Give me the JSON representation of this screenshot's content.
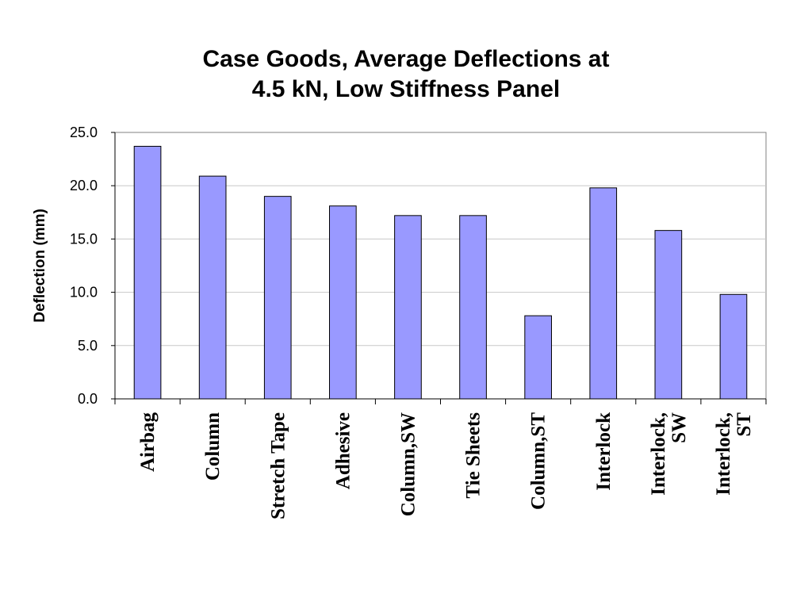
{
  "chart_data": {
    "type": "bar",
    "title_line1": "Case Goods, Average Deflections at",
    "title_line2": "4.5 kN, Low Stiffness Panel",
    "xlabel": "",
    "ylabel": "Deflection (mm)",
    "ylim": [
      0,
      25
    ],
    "yticks": [
      "0.0",
      "5.0",
      "10.0",
      "15.0",
      "20.0",
      "25.0"
    ],
    "categories": [
      [
        "Airbag"
      ],
      [
        "Column"
      ],
      [
        "Stretch Tape"
      ],
      [
        "Adhesive"
      ],
      [
        "Column,SW"
      ],
      [
        "Tie Sheets"
      ],
      [
        "Column,ST"
      ],
      [
        "Interlock"
      ],
      [
        "Interlock,",
        "SW"
      ],
      [
        "Interlock,",
        "ST"
      ]
    ],
    "values": [
      23.7,
      20.9,
      19.0,
      18.1,
      17.2,
      17.2,
      7.8,
      19.8,
      15.8,
      9.8
    ],
    "bar_color": "#9999ff",
    "grid": true,
    "legend": "none"
  }
}
